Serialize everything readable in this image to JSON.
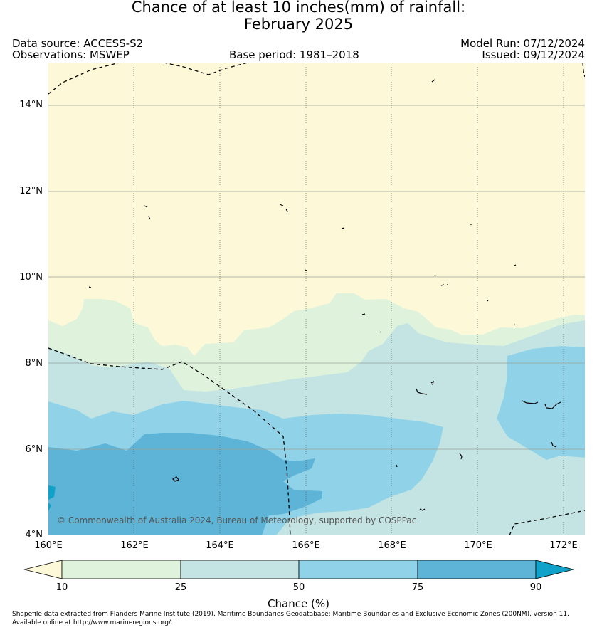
{
  "title_line1": "Chance of at least 10 inches(mm) of rainfall:",
  "title_line2": "February 2025",
  "data_source": "Data source: ACCESS-S2",
  "observations": "Observations: MSWEP",
  "base_period": "Base period: 1981–2018",
  "model_run": "Model Run: 07/12/2024",
  "issued": "Issued: 09/12/2024",
  "attribution": "© Commonwealth of Australia 2024, Bureau of Meteorology, supported by COSPPac",
  "lat_labels": [
    "14°N",
    "12°N",
    "10°N",
    "8°N",
    "6°N",
    "4°N"
  ],
  "lon_labels": [
    "160°E",
    "162°E",
    "164°E",
    "166°E",
    "168°E",
    "170°E",
    "172°E"
  ],
  "colorbar": {
    "ticks": [
      "10",
      "25",
      "50",
      "75",
      "90"
    ],
    "title": "Chance (%)",
    "colors": [
      "#fdf9d8",
      "#dff3dc",
      "#c3e4e3",
      "#90d3e8",
      "#5db4d7",
      "#10a2c9"
    ]
  },
  "footer": "Shapefile data extracted from Flanders Marine Institute (2019), Maritime Boundaries Geodatabase: Maritime Boundaries and Exclusive Economic Zones (200NM), version 11. Available online at http://www.marineregions.org/."
}
